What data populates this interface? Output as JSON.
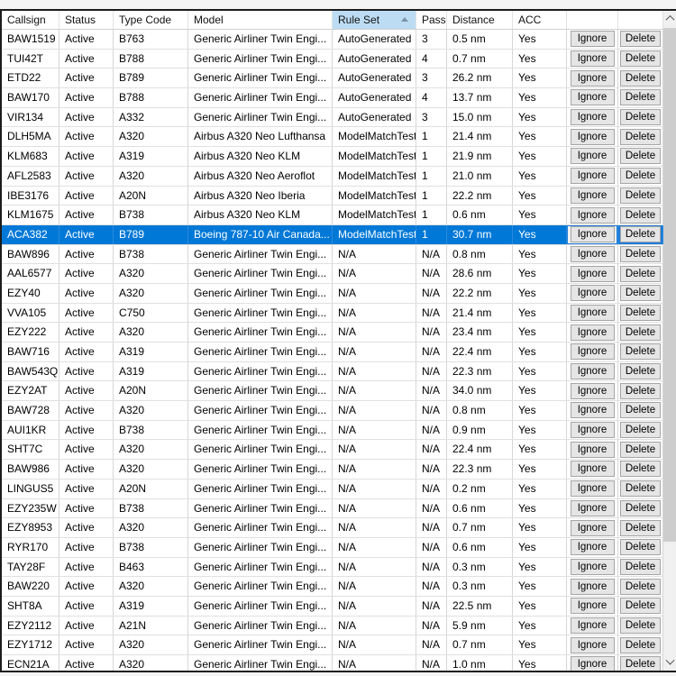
{
  "table": {
    "columns": [
      {
        "key": "callsign",
        "label": "Callsign"
      },
      {
        "key": "status",
        "label": "Status"
      },
      {
        "key": "type_code",
        "label": "Type Code"
      },
      {
        "key": "model",
        "label": "Model"
      },
      {
        "key": "rule_set",
        "label": "Rule Set",
        "sorted": "ascending"
      },
      {
        "key": "pass",
        "label": "Pass"
      },
      {
        "key": "distance",
        "label": "Distance"
      },
      {
        "key": "acc",
        "label": "ACC"
      },
      {
        "key": "ignore_col",
        "label": ""
      },
      {
        "key": "delete_col",
        "label": ""
      }
    ],
    "buttons": {
      "ignore": "Ignore",
      "delete": "Delete"
    },
    "selected_callsign": "ACA382",
    "rows": [
      {
        "callsign": "BAW1519",
        "status": "Active",
        "type_code": "B763",
        "model": "Generic Airliner Twin Engi...",
        "rule_set": "AutoGenerated",
        "pass": "3",
        "distance": "0.5 nm",
        "acc": "Yes"
      },
      {
        "callsign": "TUI42T",
        "status": "Active",
        "type_code": "B788",
        "model": "Generic Airliner Twin Engi...",
        "rule_set": "AutoGenerated",
        "pass": "4",
        "distance": "0.7 nm",
        "acc": "Yes"
      },
      {
        "callsign": "ETD22",
        "status": "Active",
        "type_code": "B789",
        "model": "Generic Airliner Twin Engi...",
        "rule_set": "AutoGenerated",
        "pass": "3",
        "distance": "26.2 nm",
        "acc": "Yes"
      },
      {
        "callsign": "BAW170",
        "status": "Active",
        "type_code": "B788",
        "model": "Generic Airliner Twin Engi...",
        "rule_set": "AutoGenerated",
        "pass": "4",
        "distance": "13.7 nm",
        "acc": "Yes"
      },
      {
        "callsign": "VIR134",
        "status": "Active",
        "type_code": "A332",
        "model": "Generic Airliner Twin Engi...",
        "rule_set": "AutoGenerated",
        "pass": "3",
        "distance": "15.0 nm",
        "acc": "Yes"
      },
      {
        "callsign": "DLH5MA",
        "status": "Active",
        "type_code": "A320",
        "model": "Airbus A320 Neo Lufthansa",
        "rule_set": "ModelMatchTest",
        "pass": "1",
        "distance": "21.4 nm",
        "acc": "Yes"
      },
      {
        "callsign": "KLM683",
        "status": "Active",
        "type_code": "A319",
        "model": "Airbus A320 Neo KLM",
        "rule_set": "ModelMatchTest",
        "pass": "1",
        "distance": "21.9 nm",
        "acc": "Yes"
      },
      {
        "callsign": "AFL2583",
        "status": "Active",
        "type_code": "A320",
        "model": "Airbus A320 Neo Aeroflot",
        "rule_set": "ModelMatchTest",
        "pass": "1",
        "distance": "21.0 nm",
        "acc": "Yes"
      },
      {
        "callsign": "IBE3176",
        "status": "Active",
        "type_code": "A20N",
        "model": "Airbus A320 Neo Iberia",
        "rule_set": "ModelMatchTest",
        "pass": "1",
        "distance": "22.2 nm",
        "acc": "Yes"
      },
      {
        "callsign": "KLM1675",
        "status": "Active",
        "type_code": "B738",
        "model": "Airbus A320 Neo KLM",
        "rule_set": "ModelMatchTest",
        "pass": "1",
        "distance": "0.6 nm",
        "acc": "Yes"
      },
      {
        "callsign": "ACA382",
        "status": "Active",
        "type_code": "B789",
        "model": "Boeing 787-10 Air Canada...",
        "rule_set": "ModelMatchTest",
        "pass": "1",
        "distance": "30.7 nm",
        "acc": "Yes"
      },
      {
        "callsign": "BAW896",
        "status": "Active",
        "type_code": "B738",
        "model": "Generic Airliner Twin Engi...",
        "rule_set": "N/A",
        "pass": "N/A",
        "distance": "0.8 nm",
        "acc": "Yes"
      },
      {
        "callsign": "AAL6577",
        "status": "Active",
        "type_code": "A320",
        "model": "Generic Airliner Twin Engi...",
        "rule_set": "N/A",
        "pass": "N/A",
        "distance": "28.6 nm",
        "acc": "Yes"
      },
      {
        "callsign": "EZY40",
        "status": "Active",
        "type_code": "A320",
        "model": "Generic Airliner Twin Engi...",
        "rule_set": "N/A",
        "pass": "N/A",
        "distance": "22.2 nm",
        "acc": "Yes"
      },
      {
        "callsign": "VVA105",
        "status": "Active",
        "type_code": "C750",
        "model": "Generic Airliner Twin Engi...",
        "rule_set": "N/A",
        "pass": "N/A",
        "distance": "21.4 nm",
        "acc": "Yes"
      },
      {
        "callsign": "EZY222",
        "status": "Active",
        "type_code": "A320",
        "model": "Generic Airliner Twin Engi...",
        "rule_set": "N/A",
        "pass": "N/A",
        "distance": "23.4 nm",
        "acc": "Yes"
      },
      {
        "callsign": "BAW716",
        "status": "Active",
        "type_code": "A319",
        "model": "Generic Airliner Twin Engi...",
        "rule_set": "N/A",
        "pass": "N/A",
        "distance": "22.4 nm",
        "acc": "Yes"
      },
      {
        "callsign": "BAW543Q",
        "status": "Active",
        "type_code": "A319",
        "model": "Generic Airliner Twin Engi...",
        "rule_set": "N/A",
        "pass": "N/A",
        "distance": "22.3 nm",
        "acc": "Yes"
      },
      {
        "callsign": "EZY2AT",
        "status": "Active",
        "type_code": "A20N",
        "model": "Generic Airliner Twin Engi...",
        "rule_set": "N/A",
        "pass": "N/A",
        "distance": "34.0 nm",
        "acc": "Yes"
      },
      {
        "callsign": "BAW728",
        "status": "Active",
        "type_code": "A320",
        "model": "Generic Airliner Twin Engi...",
        "rule_set": "N/A",
        "pass": "N/A",
        "distance": "0.8 nm",
        "acc": "Yes"
      },
      {
        "callsign": "AUI1KR",
        "status": "Active",
        "type_code": "B738",
        "model": "Generic Airliner Twin Engi...",
        "rule_set": "N/A",
        "pass": "N/A",
        "distance": "0.9 nm",
        "acc": "Yes"
      },
      {
        "callsign": "SHT7C",
        "status": "Active",
        "type_code": "A320",
        "model": "Generic Airliner Twin Engi...",
        "rule_set": "N/A",
        "pass": "N/A",
        "distance": "22.4 nm",
        "acc": "Yes"
      },
      {
        "callsign": "BAW986",
        "status": "Active",
        "type_code": "A320",
        "model": "Generic Airliner Twin Engi...",
        "rule_set": "N/A",
        "pass": "N/A",
        "distance": "22.3 nm",
        "acc": "Yes"
      },
      {
        "callsign": "LINGUS5",
        "status": "Active",
        "type_code": "A20N",
        "model": "Generic Airliner Twin Engi...",
        "rule_set": "N/A",
        "pass": "N/A",
        "distance": "0.2 nm",
        "acc": "Yes"
      },
      {
        "callsign": "EZY235W",
        "status": "Active",
        "type_code": "B738",
        "model": "Generic Airliner Twin Engi...",
        "rule_set": "N/A",
        "pass": "N/A",
        "distance": "0.6 nm",
        "acc": "Yes"
      },
      {
        "callsign": "EZY8953",
        "status": "Active",
        "type_code": "A320",
        "model": "Generic Airliner Twin Engi...",
        "rule_set": "N/A",
        "pass": "N/A",
        "distance": "0.7 nm",
        "acc": "Yes"
      },
      {
        "callsign": "RYR170",
        "status": "Active",
        "type_code": "B738",
        "model": "Generic Airliner Twin Engi...",
        "rule_set": "N/A",
        "pass": "N/A",
        "distance": "0.6 nm",
        "acc": "Yes"
      },
      {
        "callsign": "TAY28F",
        "status": "Active",
        "type_code": "B463",
        "model": "Generic Airliner Twin Engi...",
        "rule_set": "N/A",
        "pass": "N/A",
        "distance": "0.3 nm",
        "acc": "Yes"
      },
      {
        "callsign": "BAW220",
        "status": "Active",
        "type_code": "A320",
        "model": "Generic Airliner Twin Engi...",
        "rule_set": "N/A",
        "pass": "N/A",
        "distance": "0.3 nm",
        "acc": "Yes"
      },
      {
        "callsign": "SHT8A",
        "status": "Active",
        "type_code": "A319",
        "model": "Generic Airliner Twin Engi...",
        "rule_set": "N/A",
        "pass": "N/A",
        "distance": "22.5 nm",
        "acc": "Yes"
      },
      {
        "callsign": "EZY2112",
        "status": "Active",
        "type_code": "A21N",
        "model": "Generic Airliner Twin Engi...",
        "rule_set": "N/A",
        "pass": "N/A",
        "distance": "5.9 nm",
        "acc": "Yes"
      },
      {
        "callsign": "EZY1712",
        "status": "Active",
        "type_code": "A320",
        "model": "Generic Airliner Twin Engi...",
        "rule_set": "N/A",
        "pass": "N/A",
        "distance": "0.7 nm",
        "acc": "Yes"
      },
      {
        "callsign": "ECN21A",
        "status": "Active",
        "type_code": "A320",
        "model": "Generic Airliner Twin Engi...",
        "rule_set": "N/A",
        "pass": "N/A",
        "distance": "1.0 nm",
        "acc": "Yes"
      }
    ]
  },
  "scrollbar": {
    "up_icon": "chevron-up",
    "down_icon": "chevron-down"
  },
  "colors": {
    "selection_blue": "#0078d7",
    "sorted_header_bg": "#bcdcf4",
    "button_bg": "#e5e5e5",
    "button_border": "#a5a5a5",
    "grid_line": "#d6d6d6",
    "scroll_track": "#f0f0f0",
    "scroll_thumb": "#cdcdcd"
  }
}
